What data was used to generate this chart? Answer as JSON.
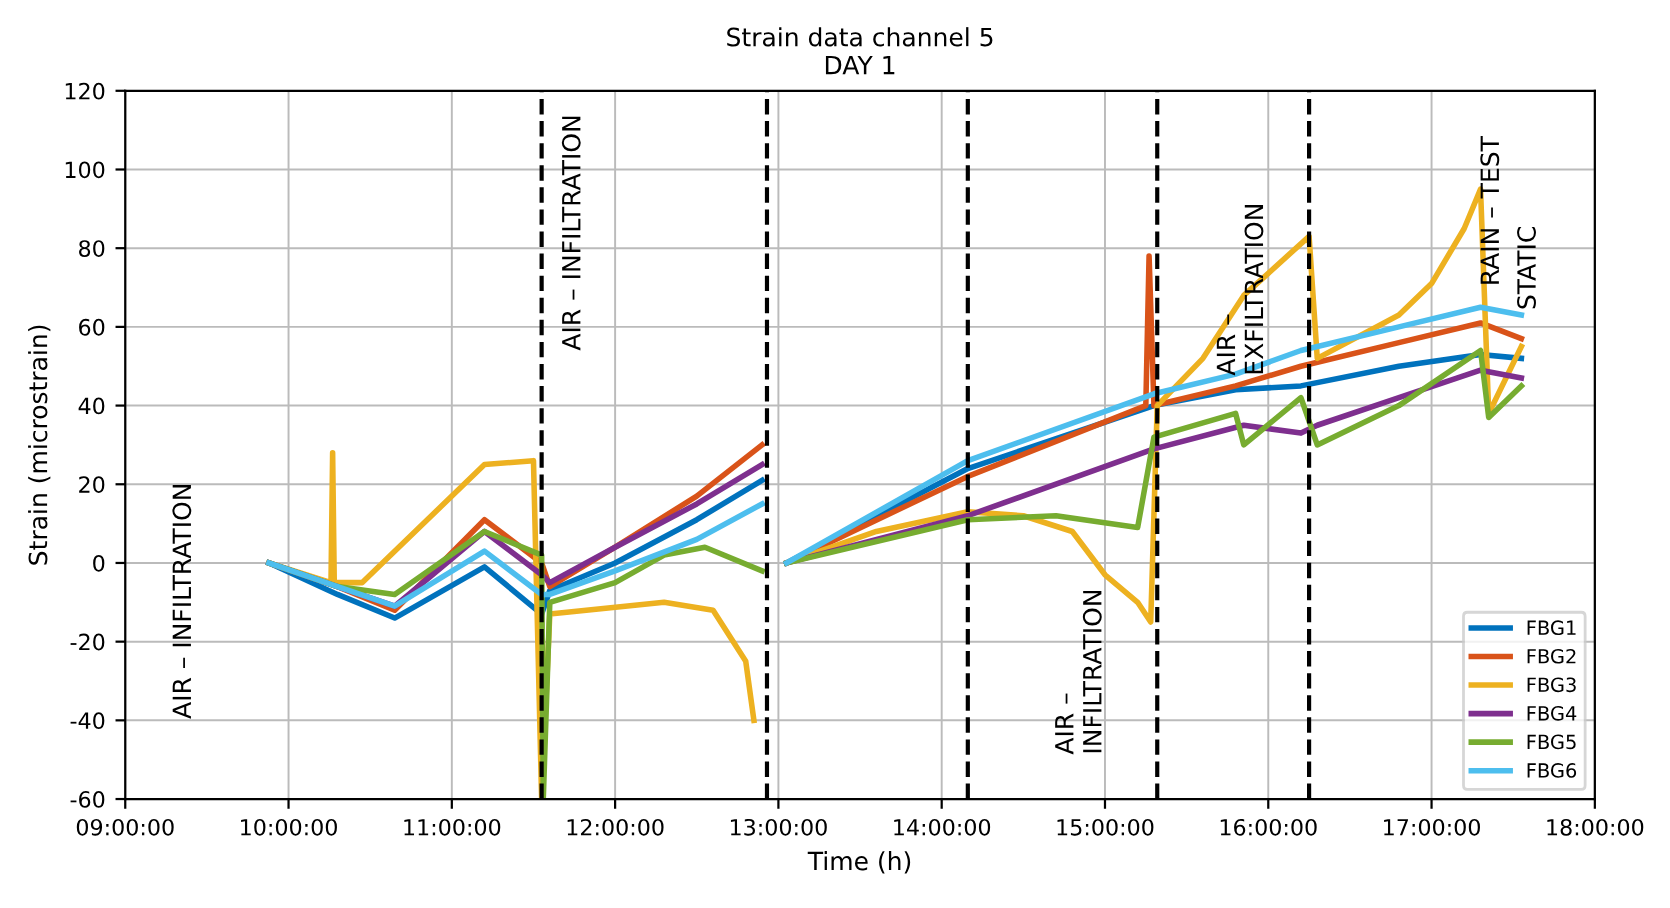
{
  "chart_data": {
    "type": "line",
    "title": "Strain data channel 5\nDAY 1",
    "xlabel": "Time (h)",
    "ylabel": "Strain (microstrain)",
    "xlim": [
      9,
      18
    ],
    "ylim": [
      -60,
      120
    ],
    "xticks": [
      {
        "value": 9,
        "label": "09:00:00"
      },
      {
        "value": 10,
        "label": "10:00:00"
      },
      {
        "value": 11,
        "label": "11:00:00"
      },
      {
        "value": 12,
        "label": "12:00:00"
      },
      {
        "value": 13,
        "label": "13:00:00"
      },
      {
        "value": 14,
        "label": "14:00:00"
      },
      {
        "value": 15,
        "label": "15:00:00"
      },
      {
        "value": 16,
        "label": "16:00:00"
      },
      {
        "value": 17,
        "label": "17:00:00"
      },
      {
        "value": 18,
        "label": "18:00:00"
      }
    ],
    "yticks": [
      -60,
      -40,
      -20,
      0,
      20,
      40,
      60,
      80,
      100,
      120
    ],
    "grid": true,
    "legend": "bottom right",
    "marker": "none",
    "line_style": "solid",
    "ref_lines": [
      {
        "axis": "x",
        "value": 11.55,
        "color": "#000000",
        "line_style": "dashed"
      },
      {
        "axis": "x",
        "value": 12.93,
        "color": "#000000",
        "line_style": "dashed"
      },
      {
        "axis": "x",
        "value": 14.16,
        "color": "#000000",
        "line_style": "dashed"
      },
      {
        "axis": "x",
        "value": 15.32,
        "color": "#000000",
        "line_style": "dashed"
      },
      {
        "axis": "x",
        "value": 16.25,
        "color": "#000000",
        "line_style": "dashed"
      }
    ],
    "annotations": [
      "AIR – INFILTRATION",
      "AIR – INFILTRATION",
      "AIR –\nINFILTRATION",
      "AIR –\nEXFILTRATION",
      "RAIN – TEST",
      "STATIC"
    ],
    "series": [
      {
        "name": "FBG1",
        "color": "#0072bd",
        "x": [
          9.88,
          10.3,
          10.65,
          11.2,
          11.55,
          11.6,
          12.0,
          12.5,
          12.9,
          null,
          13.05,
          14.16,
          15.3,
          15.8,
          16.2,
          16.8,
          17.3,
          17.55
        ],
        "values": [
          0,
          -8,
          -14,
          -1,
          -13,
          -7,
          0,
          11,
          21,
          null,
          0,
          24,
          40,
          44,
          45,
          50,
          53,
          52
        ]
      },
      {
        "name": "FBG2",
        "color": "#d95319",
        "x": [
          9.88,
          10.3,
          10.65,
          11.2,
          11.55,
          11.6,
          12.0,
          12.5,
          12.9,
          null,
          13.05,
          14.16,
          15.25,
          15.27,
          15.3,
          15.8,
          16.2,
          16.8,
          17.3,
          17.55
        ],
        "values": [
          0,
          -6,
          -12,
          11,
          0,
          -6,
          4,
          17,
          30,
          null,
          0,
          22,
          40,
          78,
          40,
          45,
          50,
          56,
          61,
          57
        ]
      },
      {
        "name": "FBG3",
        "color": "#edb120",
        "x": [
          9.88,
          10.26,
          10.27,
          10.28,
          10.45,
          11.2,
          11.5,
          11.55,
          11.6,
          12.3,
          12.6,
          12.8,
          12.85,
          null,
          13.05,
          13.6,
          14.16,
          14.5,
          14.8,
          15.0,
          15.2,
          15.28,
          15.32,
          15.6,
          15.85,
          16.25,
          16.3,
          16.8,
          17.0,
          17.2,
          17.3,
          17.35,
          17.55
        ],
        "values": [
          0,
          -5,
          28,
          -5,
          -5,
          25,
          26,
          -60,
          -13,
          -10,
          -12,
          -25,
          -40,
          null,
          0,
          8,
          13,
          12,
          8,
          -3,
          -10,
          -15,
          40,
          52,
          68,
          83,
          52,
          63,
          71,
          85,
          95,
          38,
          55
        ]
      },
      {
        "name": "FBG4",
        "color": "#7e2f8e",
        "x": [
          9.88,
          10.3,
          10.65,
          11.2,
          11.55,
          11.6,
          12.0,
          12.5,
          12.9,
          null,
          13.05,
          14.16,
          15.3,
          15.85,
          16.2,
          16.3,
          16.8,
          17.3,
          17.55
        ],
        "values": [
          0,
          -6,
          -11,
          8,
          -3,
          -5,
          4,
          15,
          25,
          null,
          0,
          12,
          29,
          35,
          33,
          35,
          42,
          49,
          47
        ]
      },
      {
        "name": "FBG5",
        "color": "#77ac30",
        "x": [
          9.88,
          10.3,
          10.65,
          11.2,
          11.55,
          11.56,
          11.6,
          12.0,
          12.3,
          12.55,
          12.9,
          null,
          13.05,
          14.16,
          14.7,
          15.2,
          15.3,
          15.8,
          15.85,
          16.2,
          16.3,
          16.8,
          17.3,
          17.35,
          17.55
        ],
        "values": [
          0,
          -6,
          -8,
          8,
          2,
          -60,
          -10,
          -5,
          2,
          4,
          -2,
          null,
          0,
          11,
          12,
          9,
          32,
          38,
          30,
          42,
          30,
          40,
          54,
          37,
          45
        ]
      },
      {
        "name": "FBG6",
        "color": "#4dbeee",
        "x": [
          9.88,
          10.3,
          10.65,
          11.2,
          11.55,
          11.6,
          12.0,
          12.5,
          12.9,
          null,
          13.05,
          14.16,
          15.3,
          15.8,
          16.2,
          16.8,
          17.3,
          17.55
        ],
        "values": [
          0,
          -6,
          -11,
          3,
          -8,
          -8,
          -2,
          6,
          15,
          null,
          0,
          26,
          43,
          48,
          54,
          60,
          65,
          63
        ]
      }
    ]
  }
}
